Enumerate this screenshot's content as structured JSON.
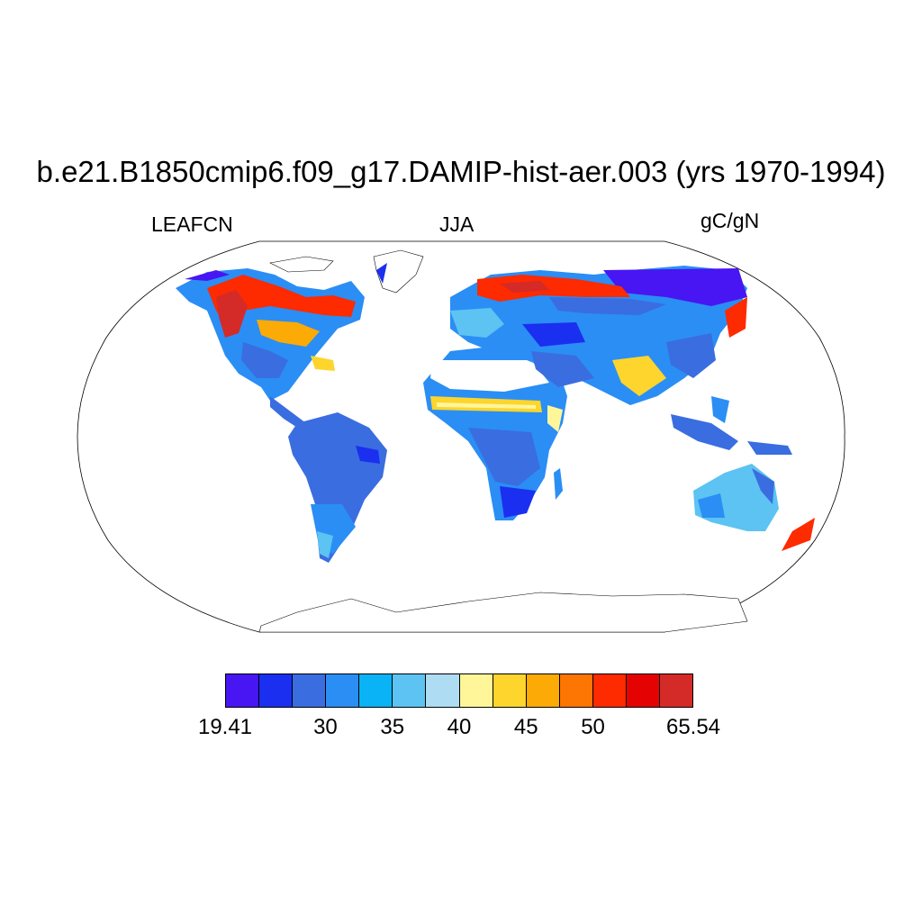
{
  "title": "b.e21.B1850cmip6.f09_g17.DAMIP-hist-aer.003 (yrs 1970-1994)",
  "left_label": "LEAFCN",
  "center_label": "JJA",
  "right_label": "gC/gN",
  "colorbar": {
    "colors": [
      "#4716f2",
      "#1b2ff0",
      "#3a6de0",
      "#2a8ef5",
      "#0ab3f6",
      "#5cc3f2",
      "#aedcf2",
      "#fff69a",
      "#fdd52c",
      "#fcaa05",
      "#fd7502",
      "#fe2a00",
      "#e40202",
      "#d42a28"
    ],
    "labels": [
      {
        "text": "19.41",
        "boundary": 0
      },
      {
        "text": "30",
        "boundary": 3
      },
      {
        "text": "35",
        "boundary": 5
      },
      {
        "text": "40",
        "boundary": 7
      },
      {
        "text": "45",
        "boundary": 9
      },
      {
        "text": "50",
        "boundary": 11
      },
      {
        "text": "65.54",
        "boundary": 14
      }
    ]
  },
  "map": {
    "projection": "robinson",
    "land_fill_note": "Leaf C:N ratio field over land; ocean white; Antarctica unfilled outline"
  }
}
